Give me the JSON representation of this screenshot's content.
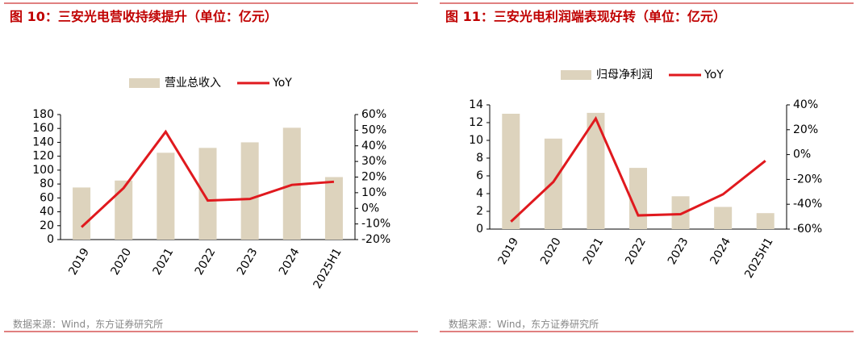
{
  "chart_data": [
    {
      "type": "bar_line",
      "title": "图 10：三安光电营收持续提升（单位：亿元）",
      "source": "数据来源：Wind，东方证券研究所",
      "categories": [
        "2019",
        "2020",
        "2021",
        "2022",
        "2023",
        "2024",
        "2025H1"
      ],
      "series": [
        {
          "name": "营业总收入",
          "color": "#ddd3bd",
          "values": [
            75,
            85,
            125,
            132,
            140,
            161,
            90
          ]
        },
        {
          "name": "YoY",
          "color": "#e0191e",
          "axis": "y2",
          "values": [
            -12,
            13,
            49,
            5,
            6,
            15,
            17
          ]
        }
      ],
      "ylim": [
        0,
        180
      ],
      "yticks": [
        0,
        20,
        40,
        60,
        80,
        100,
        120,
        140,
        160,
        180
      ],
      "y2lim": [
        -20,
        60
      ],
      "y2ticks": [
        {
          "value": -20,
          "label": "-20%"
        },
        {
          "value": -10,
          "label": "-10%"
        },
        {
          "value": 0,
          "label": "0%"
        },
        {
          "value": 10,
          "label": "10%"
        },
        {
          "value": 20,
          "label": "20%"
        },
        {
          "value": 30,
          "label": "30%"
        },
        {
          "value": 40,
          "label": "40%"
        },
        {
          "value": 50,
          "label": "50%"
        },
        {
          "value": 60,
          "label": "60%"
        }
      ]
    },
    {
      "type": "bar_line",
      "title": "图 11：三安光电利润端表现好转（单位：亿元）",
      "source": "数据来源：Wind，东方证券研究所",
      "categories": [
        "2019",
        "2020",
        "2021",
        "2022",
        "2023",
        "2024",
        "2025H1"
      ],
      "series": [
        {
          "name": "归母净利润",
          "color": "#ddd3bd",
          "values": [
            13.0,
            10.2,
            13.1,
            6.9,
            3.7,
            2.5,
            1.8
          ]
        },
        {
          "name": "YoY",
          "color": "#e0191e",
          "axis": "y2",
          "values": [
            -54,
            -22,
            29,
            -49,
            -48,
            -32,
            -5
          ]
        }
      ],
      "ylim": [
        0,
        14
      ],
      "yticks": [
        0,
        2,
        4,
        6,
        8,
        10,
        12,
        14
      ],
      "y2lim": [
        -60,
        40
      ],
      "y2ticks": [
        {
          "value": -60,
          "label": "-60%"
        },
        {
          "value": -40,
          "label": "-40%"
        },
        {
          "value": -20,
          "label": "-20%"
        },
        {
          "value": 0,
          "label": "0%"
        },
        {
          "value": 20,
          "label": "20%"
        },
        {
          "value": 40,
          "label": "40%"
        }
      ]
    }
  ]
}
